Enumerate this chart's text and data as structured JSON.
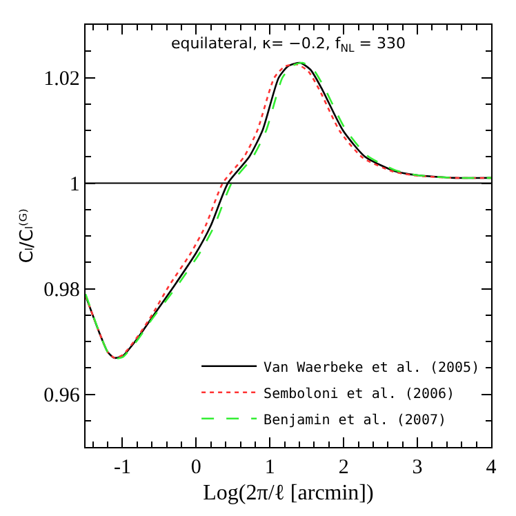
{
  "chart_data": {
    "type": "line",
    "xlabel": "Log(2π/ℓ [arcmin])",
    "ylabel": "Cₗ/Cₗ⁽ᴳ⁾",
    "annotations": [
      "equilateral, κ= −0.2, f$_{NL}$ = 330"
    ],
    "xlim": [
      -1.5,
      4
    ],
    "xticks": [
      -1,
      0,
      1,
      2,
      3,
      4
    ],
    "ylim": [
      0.95,
      1.03
    ],
    "yticks": [
      0.96,
      0.98,
      1,
      1.02
    ],
    "legend": "bottom right",
    "marker": "none",
    "ref_lines": [
      {
        "axis": "y",
        "value": 1,
        "color": "#000000",
        "line_style": "solid"
      }
    ],
    "series": [
      {
        "name": "Van Waerbeke et al. (2005)",
        "color": "#000000",
        "line_style": "solid",
        "x": [
          -1.5,
          -1.3,
          -1.2,
          -1.11,
          -1.0,
          -0.8,
          -0.6,
          -0.3,
          0,
          0.2,
          0.43,
          0.72,
          0.9,
          1.12,
          1.25,
          1.41,
          1.55,
          1.7,
          1.99,
          2.29,
          2.69,
          3,
          3.5,
          4
        ],
        "values": [
          0.9787,
          0.9712,
          0.968,
          0.9669,
          0.9672,
          0.9705,
          0.9745,
          0.9805,
          0.9868,
          0.992,
          1.0,
          1.005,
          1.01,
          1.02,
          1.0222,
          1.0228,
          1.0215,
          1.018,
          1.01,
          1.005,
          1.0023,
          1.0015,
          1.001,
          1.001
        ]
      },
      {
        "name": "Semboloni et al. (2006)",
        "color": "#ff3333",
        "line_style": "dotted",
        "x": [
          -1.5,
          -1.3,
          -1.2,
          -1.11,
          -1.0,
          -0.8,
          -0.6,
          -0.37,
          -0.07,
          0.13,
          0.36,
          0.65,
          0.83,
          1.06,
          1.2,
          1.37,
          1.52,
          1.67,
          1.95,
          2.26,
          2.67,
          3,
          3.5,
          4
        ],
        "values": [
          0.9787,
          0.9712,
          0.968,
          0.9669,
          0.9674,
          0.9708,
          0.975,
          0.9805,
          0.9868,
          0.992,
          1.0,
          1.005,
          1.01,
          1.02,
          1.0221,
          1.0225,
          1.0212,
          1.0177,
          1.0098,
          1.0048,
          1.0022,
          1.0014,
          1.001,
          1.001
        ]
      },
      {
        "name": "Benjamin et al. (2007)",
        "color": "#33ee33",
        "line_style": "dashed",
        "x": [
          -1.5,
          -1.3,
          -1.2,
          -1.11,
          -1.0,
          -0.8,
          -0.6,
          -0.26,
          0.05,
          0.25,
          0.48,
          0.77,
          0.95,
          1.17,
          1.3,
          1.44,
          1.58,
          1.73,
          2.02,
          2.32,
          2.71,
          3,
          3.5,
          4
        ],
        "values": [
          0.979,
          0.9712,
          0.968,
          0.9668,
          0.967,
          0.9702,
          0.9742,
          0.9805,
          0.9868,
          0.992,
          1.0,
          1.005,
          1.01,
          1.02,
          1.0222,
          1.0228,
          1.0217,
          1.0183,
          1.0103,
          1.0052,
          1.0024,
          1.0015,
          1.001,
          1.001
        ]
      }
    ]
  }
}
